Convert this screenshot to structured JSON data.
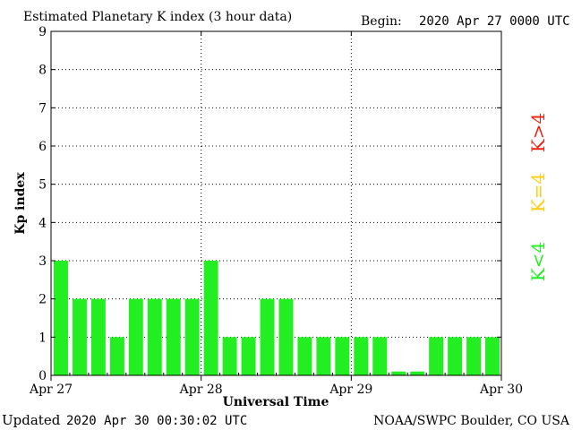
{
  "header": {
    "title": "Estimated Planetary K index (3 hour data)",
    "begin_label": "Begin:",
    "begin_value": "2020 Apr 27 0000 UTC"
  },
  "footer": {
    "updated_label": "Updated",
    "updated_value": "2020 Apr 30 00:30:02 UTC",
    "source": "NOAA/SWPC Boulder, CO USA"
  },
  "legend": {
    "high": "K>4",
    "mid": "K=4",
    "low": "K<4"
  },
  "colors": {
    "low": "#22ee22",
    "mid": "#ffcc11",
    "high": "#ee2211",
    "axis": "#000000"
  },
  "chart_data": {
    "type": "bar",
    "title": "Estimated Planetary K index (3 hour data)",
    "xlabel": "Universal Time",
    "ylabel": "Kp index",
    "ylim": [
      0,
      9
    ],
    "yticks": [
      "0",
      "1",
      "2",
      "3",
      "4",
      "5",
      "6",
      "7",
      "8",
      "9"
    ],
    "xticks": [
      "Apr 27",
      "Apr 28",
      "Apr 29",
      "Apr 30"
    ],
    "grid": true,
    "values": [
      3,
      2,
      2,
      1,
      2,
      2,
      2,
      2,
      3,
      1,
      1,
      2,
      2,
      1,
      1,
      1,
      1,
      1,
      0.1,
      0.1,
      1,
      1,
      1,
      1
    ]
  }
}
